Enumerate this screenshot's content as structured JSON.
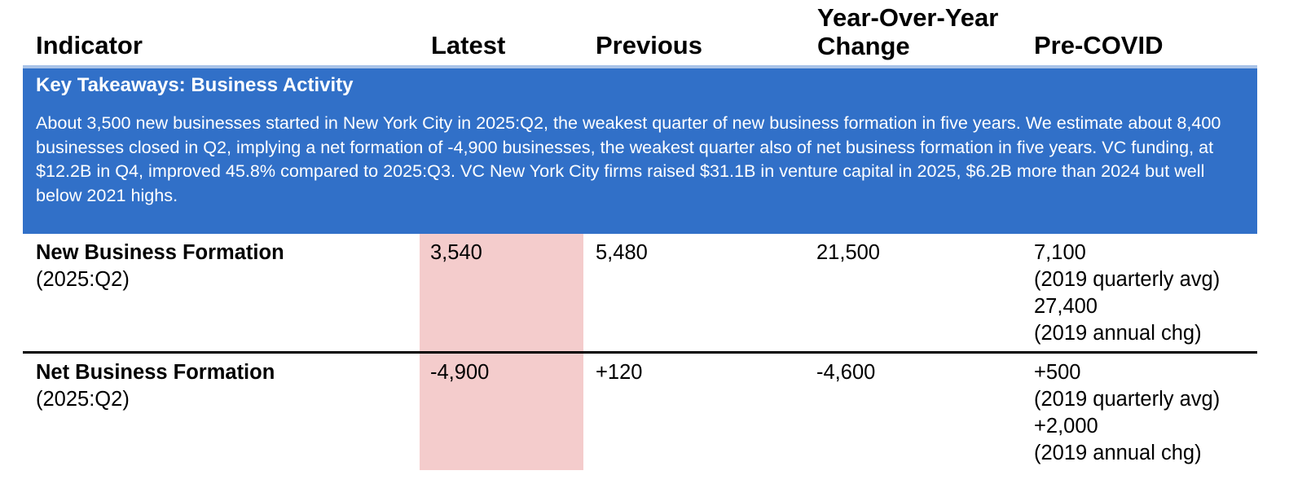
{
  "header": {
    "columns": [
      "Indicator",
      "Latest",
      "Previous",
      "Year-Over-Year Change",
      "Pre-COVID"
    ]
  },
  "takeaways": {
    "title": "Key Takeaways: Business Activity",
    "text": "About 3,500 new businesses started in New York City in 2025:Q2, the weakest quarter of new business formation in five years. We estimate about 8,400 businesses closed in Q2, implying a net formation of -4,900 businesses, the weakest quarter also of net business formation in five years. VC funding, at $12.2B in Q4, improved 45.8% compared to 2025:Q3. VC New York City firms raised $31.1B in venture capital in 2025, $6.2B more than 2024 but well below 2021 highs."
  },
  "table": {
    "rows": [
      {
        "indicator": "New Business Formation",
        "period": "(2025:Q2)",
        "latest": "3,540",
        "previous": "5,480",
        "yoy": "21,500",
        "pre_covid": [
          "7,100",
          "(2019 quarterly avg)",
          "27,400",
          "(2019 annual chg)"
        ]
      },
      {
        "indicator": "Net Business Formation",
        "period": "(2025:Q2)",
        "latest": "-4,900",
        "previous": "+120",
        "yoy": "-4,600",
        "pre_covid": [
          "+500",
          "(2019 quarterly avg)",
          "+2,000",
          "(2019 annual chg)"
        ]
      }
    ]
  }
}
